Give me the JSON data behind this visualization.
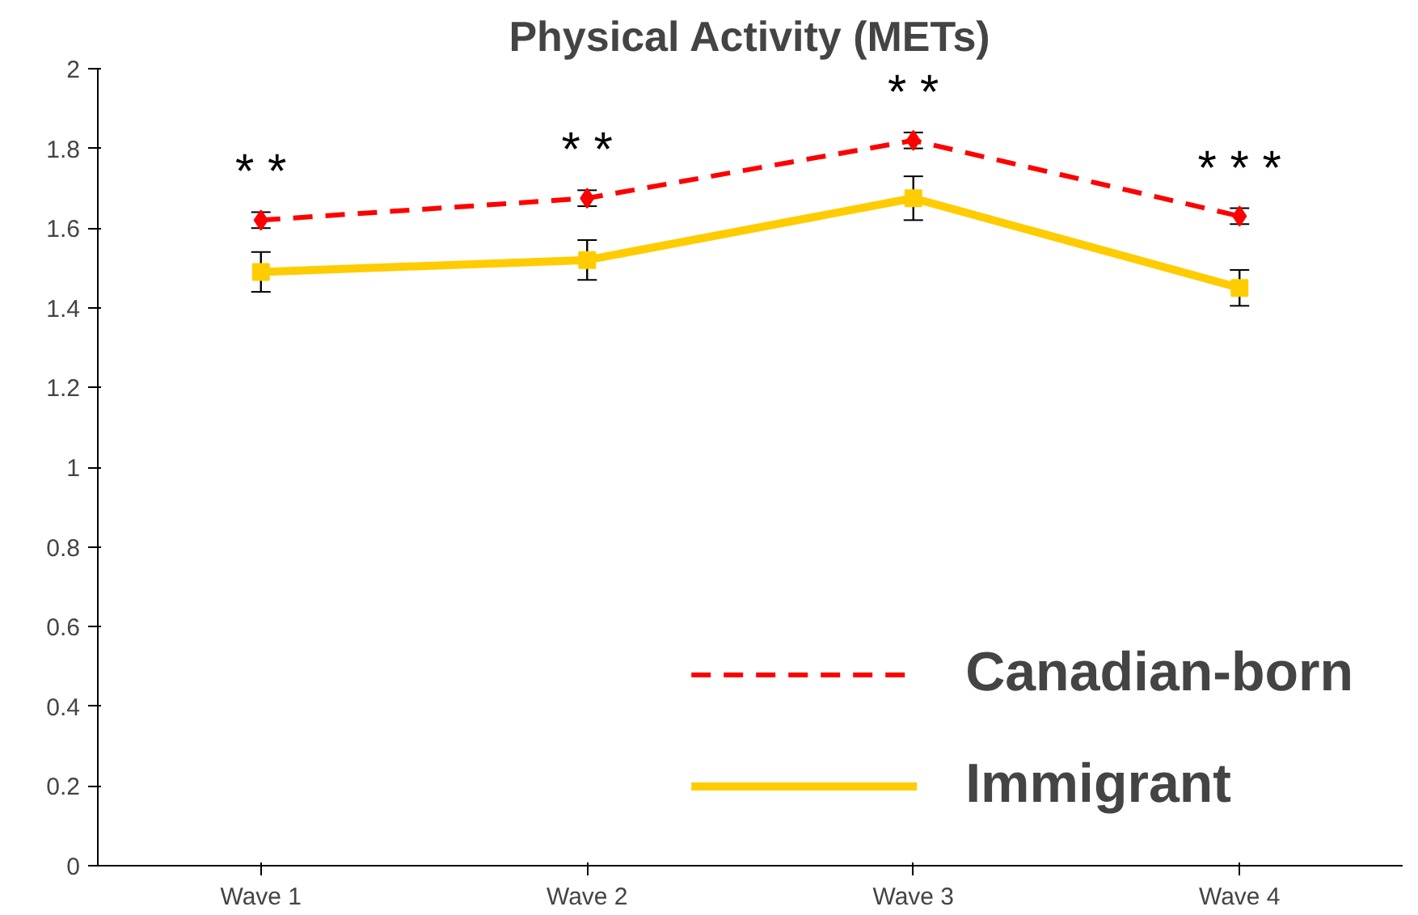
{
  "chart_data": {
    "type": "line",
    "title": "Physical Activity (METs)",
    "categories": [
      "Wave 1",
      "Wave 2",
      "Wave 3",
      "Wave 4"
    ],
    "series": [
      {
        "name": "Canadian-born",
        "color": "#ff0000",
        "values": [
          1.62,
          1.675,
          1.82,
          1.63
        ],
        "errors": [
          0.02,
          0.02,
          0.02,
          0.02
        ],
        "marker": "diamond",
        "line_style": "dashed"
      },
      {
        "name": "Immigrant",
        "color": "#ffcc00",
        "values": [
          1.49,
          1.52,
          1.675,
          1.45
        ],
        "errors": [
          0.05,
          0.05,
          0.055,
          0.045
        ],
        "marker": "square",
        "line_style": "solid"
      }
    ],
    "ylim": [
      0,
      2
    ],
    "yticks": [
      0,
      0.2,
      0.4,
      0.6,
      0.8,
      1,
      1.2,
      1.4,
      1.6,
      1.8,
      2
    ],
    "grid": false,
    "legend": "bottom right",
    "annotations": [
      "* *",
      "* *",
      "* *",
      "* * *"
    ]
  }
}
